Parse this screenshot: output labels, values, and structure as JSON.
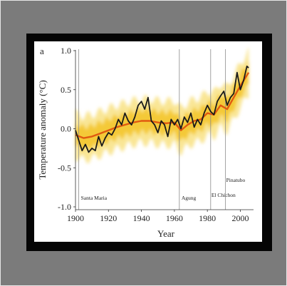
{
  "panel_label": "a",
  "chart_data": {
    "type": "line",
    "title": "",
    "xlabel": "Year",
    "ylabel": "Temperature anomaly (°C)",
    "xlim": [
      1900,
      2008
    ],
    "ylim": [
      -1.0,
      1.0
    ],
    "x_ticks": [
      1900,
      1920,
      1940,
      1960,
      1980,
      2000
    ],
    "y_ticks": [
      "1.0",
      "0.5",
      "0.0",
      "-0.5",
      "-1.0"
    ],
    "grid": false,
    "colors": {
      "observed": "#1a1a1a",
      "model_mean": "#e05a10",
      "model_spread": "#f3c21f",
      "volcano_line": "#8a8a8a"
    },
    "volcanic_eruptions": [
      {
        "year": 1902,
        "label": "Santa Maria"
      },
      {
        "year": 1963,
        "label": "Agung"
      },
      {
        "year": 1982,
        "label": "El Chichon"
      },
      {
        "year": 1991,
        "label": "Pinatubo"
      }
    ],
    "series": [
      {
        "role": "observed",
        "x": [
          1900,
          1902,
          1904,
          1906,
          1908,
          1910,
          1912,
          1914,
          1916,
          1918,
          1920,
          1922,
          1924,
          1926,
          1928,
          1930,
          1932,
          1934,
          1936,
          1938,
          1940,
          1942,
          1944,
          1946,
          1948,
          1950,
          1952,
          1954,
          1956,
          1958,
          1960,
          1962,
          1964,
          1966,
          1968,
          1970,
          1972,
          1974,
          1976,
          1978,
          1980,
          1982,
          1984,
          1986,
          1988,
          1990,
          1992,
          1994,
          1996,
          1998,
          2000,
          2002,
          2004,
          2005
        ],
        "values": [
          -0.02,
          -0.15,
          -0.28,
          -0.2,
          -0.3,
          -0.25,
          -0.28,
          -0.1,
          -0.22,
          -0.12,
          -0.05,
          -0.08,
          0.0,
          0.12,
          0.05,
          0.2,
          0.1,
          0.05,
          0.15,
          0.3,
          0.35,
          0.25,
          0.4,
          0.1,
          0.05,
          -0.05,
          0.1,
          0.05,
          -0.1,
          0.12,
          0.05,
          0.12,
          0.0,
          0.15,
          0.08,
          0.2,
          0.02,
          0.12,
          0.05,
          0.2,
          0.3,
          0.22,
          0.18,
          0.35,
          0.42,
          0.48,
          0.3,
          0.4,
          0.45,
          0.72,
          0.5,
          0.62,
          0.8,
          0.78
        ]
      },
      {
        "role": "model_mean",
        "x": [
          1900,
          1905,
          1910,
          1915,
          1920,
          1925,
          1930,
          1935,
          1940,
          1945,
          1950,
          1955,
          1960,
          1964,
          1968,
          1972,
          1976,
          1980,
          1984,
          1988,
          1992,
          1996,
          2000,
          2005
        ],
        "values": [
          -0.08,
          -0.12,
          -0.1,
          -0.06,
          -0.02,
          0.02,
          0.05,
          0.08,
          0.1,
          0.1,
          0.08,
          0.07,
          0.08,
          -0.02,
          0.05,
          0.1,
          0.12,
          0.2,
          0.18,
          0.3,
          0.25,
          0.4,
          0.55,
          0.72
        ]
      }
    ]
  }
}
